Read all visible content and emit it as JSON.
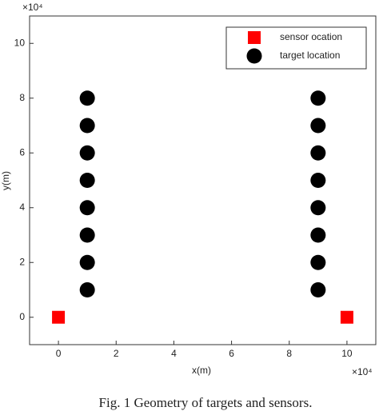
{
  "chart_data": {
    "type": "scatter",
    "caption": "Fig. 1 Geometry of targets and sensors.",
    "x_label": "x(m)",
    "y_label": "y(m)",
    "x_multiplier": "×10⁴",
    "y_multiplier": "×10⁴",
    "xlim": [
      -1,
      11
    ],
    "ylim": [
      -1,
      11
    ],
    "xticks": [
      0,
      2,
      4,
      6,
      8,
      10
    ],
    "yticks": [
      0,
      2,
      4,
      6,
      8,
      10
    ],
    "grid": false,
    "legend_position": "upper right",
    "series": [
      {
        "name": "sensor ocation",
        "color": "#ff0000",
        "marker": "square",
        "x": [
          0,
          10
        ],
        "y": [
          0,
          0
        ]
      },
      {
        "name": "target location",
        "color": "#000000",
        "marker": "circle",
        "x": [
          1,
          1,
          1,
          1,
          1,
          1,
          1,
          1,
          9,
          9,
          9,
          9,
          9,
          9,
          9,
          9
        ],
        "y": [
          1,
          2,
          3,
          4,
          5,
          6,
          7,
          8,
          1,
          2,
          3,
          4,
          5,
          6,
          7,
          8
        ]
      }
    ]
  }
}
